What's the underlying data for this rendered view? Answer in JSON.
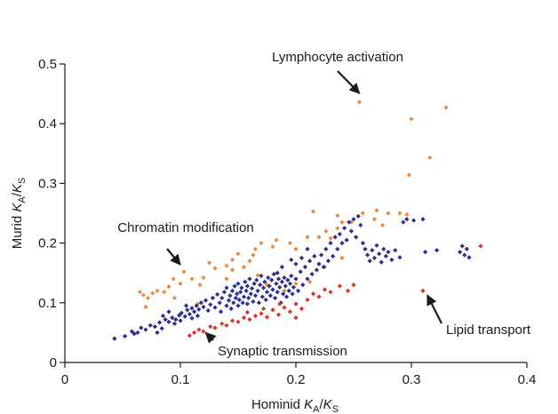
{
  "chart_data": {
    "type": "scatter",
    "xlabel": {
      "main": "Hominid ",
      "k1": "K",
      "sub1": "A",
      "slash": "/",
      "k2": "K",
      "sub2": "S"
    },
    "ylabel": {
      "main": "Murid ",
      "k1": "K",
      "sub1": "A",
      "slash": "/",
      "k2": "K",
      "sub2": "S"
    },
    "xlim": [
      0,
      0.4
    ],
    "ylim": [
      0,
      0.5
    ],
    "x_ticks": [
      "0",
      "0.1",
      "0.2",
      "0.3",
      "0.4"
    ],
    "y_ticks": [
      "0",
      "0.1",
      "0.2",
      "0.3",
      "0.4",
      "0.5"
    ],
    "grid": false,
    "colors": {
      "blue": "#2b2f8f",
      "orange": "#ef8a3a",
      "red": "#d8342b"
    },
    "annotations": [
      {
        "text": "Lymphocyte activation",
        "target": [
          0.255,
          0.436
        ]
      },
      {
        "text": "Chromatin modification",
        "target": [
          0.103,
          0.152
        ]
      },
      {
        "text": "Synaptic transmission",
        "target": [
          0.122,
          0.063
        ]
      },
      {
        "text": "Lipid transport",
        "target": [
          0.31,
          0.12
        ]
      }
    ],
    "series": [
      {
        "color": "orange",
        "points": [
          [
            0.255,
            0.436
          ],
          [
            0.3,
            0.408
          ],
          [
            0.33,
            0.427
          ],
          [
            0.316,
            0.343
          ],
          [
            0.298,
            0.314
          ],
          [
            0.28,
            0.25
          ],
          [
            0.29,
            0.25
          ],
          [
            0.296,
            0.248
          ],
          [
            0.27,
            0.255
          ],
          [
            0.268,
            0.24
          ],
          [
            0.258,
            0.25
          ],
          [
            0.236,
            0.246
          ],
          [
            0.24,
            0.235
          ],
          [
            0.215,
            0.253
          ],
          [
            0.248,
            0.235
          ],
          [
            0.226,
            0.22
          ],
          [
            0.23,
            0.208
          ],
          [
            0.22,
            0.21
          ],
          [
            0.236,
            0.225
          ],
          [
            0.21,
            0.21
          ],
          [
            0.2,
            0.19
          ],
          [
            0.195,
            0.2
          ],
          [
            0.18,
            0.194
          ],
          [
            0.183,
            0.205
          ],
          [
            0.165,
            0.19
          ],
          [
            0.17,
            0.2
          ],
          [
            0.163,
            0.18
          ],
          [
            0.16,
            0.17
          ],
          [
            0.15,
            0.182
          ],
          [
            0.167,
            0.146
          ],
          [
            0.155,
            0.16
          ],
          [
            0.145,
            0.172
          ],
          [
            0.14,
            0.162
          ],
          [
            0.145,
            0.155
          ],
          [
            0.13,
            0.158
          ],
          [
            0.125,
            0.167
          ],
          [
            0.14,
            0.14
          ],
          [
            0.12,
            0.142
          ],
          [
            0.11,
            0.14
          ],
          [
            0.117,
            0.13
          ],
          [
            0.103,
            0.152
          ],
          [
            0.1,
            0.132
          ],
          [
            0.094,
            0.14
          ],
          [
            0.09,
            0.127
          ],
          [
            0.086,
            0.118
          ],
          [
            0.08,
            0.12
          ],
          [
            0.076,
            0.116
          ],
          [
            0.072,
            0.108
          ],
          [
            0.068,
            0.113
          ],
          [
            0.065,
            0.118
          ],
          [
            0.07,
            0.093
          ],
          [
            0.095,
            0.108
          ],
          [
            0.115,
            0.098
          ],
          [
            0.212,
            0.135
          ],
          [
            0.2,
            0.132
          ],
          [
            0.225,
            0.16
          ],
          [
            0.19,
            0.12
          ],
          [
            0.175,
            0.13
          ],
          [
            0.24,
            0.175
          ],
          [
            0.275,
            0.23
          ]
        ]
      },
      {
        "color": "blue",
        "points": [
          [
            0.043,
            0.04
          ],
          [
            0.052,
            0.044
          ],
          [
            0.058,
            0.052
          ],
          [
            0.063,
            0.05
          ],
          [
            0.066,
            0.058
          ],
          [
            0.07,
            0.055
          ],
          [
            0.074,
            0.062
          ],
          [
            0.078,
            0.06
          ],
          [
            0.082,
            0.067
          ],
          [
            0.084,
            0.057
          ],
          [
            0.087,
            0.072
          ],
          [
            0.09,
            0.068
          ],
          [
            0.093,
            0.075
          ],
          [
            0.096,
            0.072
          ],
          [
            0.099,
            0.079
          ],
          [
            0.101,
            0.083
          ],
          [
            0.104,
            0.077
          ],
          [
            0.106,
            0.088
          ],
          [
            0.108,
            0.081
          ],
          [
            0.11,
            0.091
          ],
          [
            0.112,
            0.085
          ],
          [
            0.114,
            0.095
          ],
          [
            0.116,
            0.089
          ],
          [
            0.118,
            0.1
          ],
          [
            0.12,
            0.093
          ],
          [
            0.122,
            0.104
          ],
          [
            0.124,
            0.087
          ],
          [
            0.126,
            0.097
          ],
          [
            0.128,
            0.108
          ],
          [
            0.13,
            0.092
          ],
          [
            0.132,
            0.114
          ],
          [
            0.134,
            0.1
          ],
          [
            0.135,
            0.085
          ],
          [
            0.136,
            0.108
          ],
          [
            0.138,
            0.118
          ],
          [
            0.14,
            0.095
          ],
          [
            0.14,
            0.125
          ],
          [
            0.142,
            0.104
          ],
          [
            0.143,
            0.112
          ],
          [
            0.144,
            0.09
          ],
          [
            0.145,
            0.12
          ],
          [
            0.146,
            0.1
          ],
          [
            0.147,
            0.128
          ],
          [
            0.148,
            0.108
          ],
          [
            0.149,
            0.115
          ],
          [
            0.15,
            0.095
          ],
          [
            0.15,
            0.132
          ],
          [
            0.151,
            0.105
          ],
          [
            0.152,
            0.118
          ],
          [
            0.153,
            0.125
          ],
          [
            0.154,
            0.1
          ],
          [
            0.155,
            0.11
          ],
          [
            0.156,
            0.135
          ],
          [
            0.157,
            0.12
          ],
          [
            0.158,
            0.098
          ],
          [
            0.158,
            0.128
          ],
          [
            0.159,
            0.108
          ],
          [
            0.16,
            0.14
          ],
          [
            0.161,
            0.115
          ],
          [
            0.162,
            0.124
          ],
          [
            0.163,
            0.102
          ],
          [
            0.164,
            0.132
          ],
          [
            0.165,
            0.112
          ],
          [
            0.166,
            0.138
          ],
          [
            0.167,
            0.12
          ],
          [
            0.168,
            0.1
          ],
          [
            0.169,
            0.13
          ],
          [
            0.17,
            0.145
          ],
          [
            0.171,
            0.11
          ],
          [
            0.172,
            0.125
          ],
          [
            0.173,
            0.135
          ],
          [
            0.174,
            0.105
          ],
          [
            0.175,
            0.118
          ],
          [
            0.176,
            0.142
          ],
          [
            0.177,
            0.128
          ],
          [
            0.178,
            0.112
          ],
          [
            0.179,
            0.138
          ],
          [
            0.18,
            0.122
          ],
          [
            0.181,
            0.148
          ],
          [
            0.182,
            0.108
          ],
          [
            0.183,
            0.132
          ],
          [
            0.184,
            0.118
          ],
          [
            0.185,
            0.14
          ],
          [
            0.186,
            0.126
          ],
          [
            0.187,
            0.1
          ],
          [
            0.188,
            0.135
          ],
          [
            0.189,
            0.115
          ],
          [
            0.19,
            0.142
          ],
          [
            0.191,
            0.128
          ],
          [
            0.192,
            0.11
          ],
          [
            0.193,
            0.138
          ],
          [
            0.194,
            0.12
          ],
          [
            0.195,
            0.132
          ],
          [
            0.196,
            0.145
          ],
          [
            0.197,
            0.115
          ],
          [
            0.198,
            0.126
          ],
          [
            0.2,
            0.14
          ],
          [
            0.202,
            0.12
          ],
          [
            0.204,
            0.152
          ],
          [
            0.206,
            0.13
          ],
          [
            0.208,
            0.16
          ],
          [
            0.21,
            0.14
          ],
          [
            0.212,
            0.17
          ],
          [
            0.214,
            0.148
          ],
          [
            0.216,
            0.178
          ],
          [
            0.218,
            0.155
          ],
          [
            0.22,
            0.165
          ],
          [
            0.222,
            0.18
          ],
          [
            0.224,
            0.16
          ],
          [
            0.226,
            0.19
          ],
          [
            0.228,
            0.17
          ],
          [
            0.23,
            0.2
          ],
          [
            0.232,
            0.178
          ],
          [
            0.234,
            0.21
          ],
          [
            0.236,
            0.19
          ],
          [
            0.238,
            0.215
          ],
          [
            0.24,
            0.2
          ],
          [
            0.242,
            0.225
          ],
          [
            0.244,
            0.205
          ],
          [
            0.246,
            0.235
          ],
          [
            0.248,
            0.22
          ],
          [
            0.25,
            0.24
          ],
          [
            0.252,
            0.21
          ],
          [
            0.254,
            0.245
          ],
          [
            0.256,
            0.23
          ],
          [
            0.258,
            0.2
          ],
          [
            0.26,
            0.19
          ],
          [
            0.262,
            0.18
          ],
          [
            0.264,
            0.17
          ],
          [
            0.266,
            0.188
          ],
          [
            0.268,
            0.175
          ],
          [
            0.27,
            0.196
          ],
          [
            0.272,
            0.182
          ],
          [
            0.274,
            0.168
          ],
          [
            0.276,
            0.19
          ],
          [
            0.278,
            0.178
          ],
          [
            0.28,
            0.185
          ],
          [
            0.283,
            0.172
          ],
          [
            0.286,
            0.188
          ],
          [
            0.29,
            0.176
          ],
          [
            0.293,
            0.235
          ],
          [
            0.296,
            0.24
          ],
          [
            0.302,
            0.238
          ],
          [
            0.31,
            0.24
          ],
          [
            0.312,
            0.185
          ],
          [
            0.322,
            0.188
          ],
          [
            0.342,
            0.185
          ],
          [
            0.344,
            0.195
          ],
          [
            0.346,
            0.18
          ],
          [
            0.348,
            0.19
          ],
          [
            0.35,
            0.176
          ],
          [
            0.196,
            0.172
          ],
          [
            0.2,
            0.165
          ],
          [
            0.205,
            0.175
          ],
          [
            0.21,
            0.19
          ],
          [
            0.188,
            0.16
          ],
          [
            0.184,
            0.15
          ],
          [
            0.08,
            0.05
          ],
          [
            0.085,
            0.078
          ],
          [
            0.09,
            0.085
          ],
          [
            0.06,
            0.048
          ],
          [
            0.095,
            0.065
          ],
          [
            0.1,
            0.07
          ],
          [
            0.105,
            0.095
          ],
          [
            0.11,
            0.074
          ],
          [
            0.115,
            0.078
          ]
        ]
      },
      {
        "color": "red",
        "points": [
          [
            0.108,
            0.045
          ],
          [
            0.112,
            0.05
          ],
          [
            0.116,
            0.055
          ],
          [
            0.12,
            0.052
          ],
          [
            0.126,
            0.06
          ],
          [
            0.13,
            0.058
          ],
          [
            0.136,
            0.065
          ],
          [
            0.14,
            0.062
          ],
          [
            0.145,
            0.07
          ],
          [
            0.15,
            0.068
          ],
          [
            0.155,
            0.075
          ],
          [
            0.16,
            0.072
          ],
          [
            0.165,
            0.078
          ],
          [
            0.17,
            0.082
          ],
          [
            0.175,
            0.076
          ],
          [
            0.18,
            0.088
          ],
          [
            0.185,
            0.08
          ],
          [
            0.19,
            0.092
          ],
          [
            0.195,
            0.085
          ],
          [
            0.2,
            0.098
          ],
          [
            0.205,
            0.09
          ],
          [
            0.21,
            0.105
          ],
          [
            0.215,
            0.115
          ],
          [
            0.22,
            0.11
          ],
          [
            0.225,
            0.122
          ],
          [
            0.23,
            0.118
          ],
          [
            0.238,
            0.128
          ],
          [
            0.245,
            0.12
          ],
          [
            0.25,
            0.13
          ],
          [
            0.31,
            0.12
          ],
          [
            0.36,
            0.195
          ],
          [
            0.2,
            0.075
          ],
          [
            0.186,
            0.098
          ],
          [
            0.172,
            0.09
          ],
          [
            0.158,
            0.084
          ]
        ]
      }
    ]
  }
}
